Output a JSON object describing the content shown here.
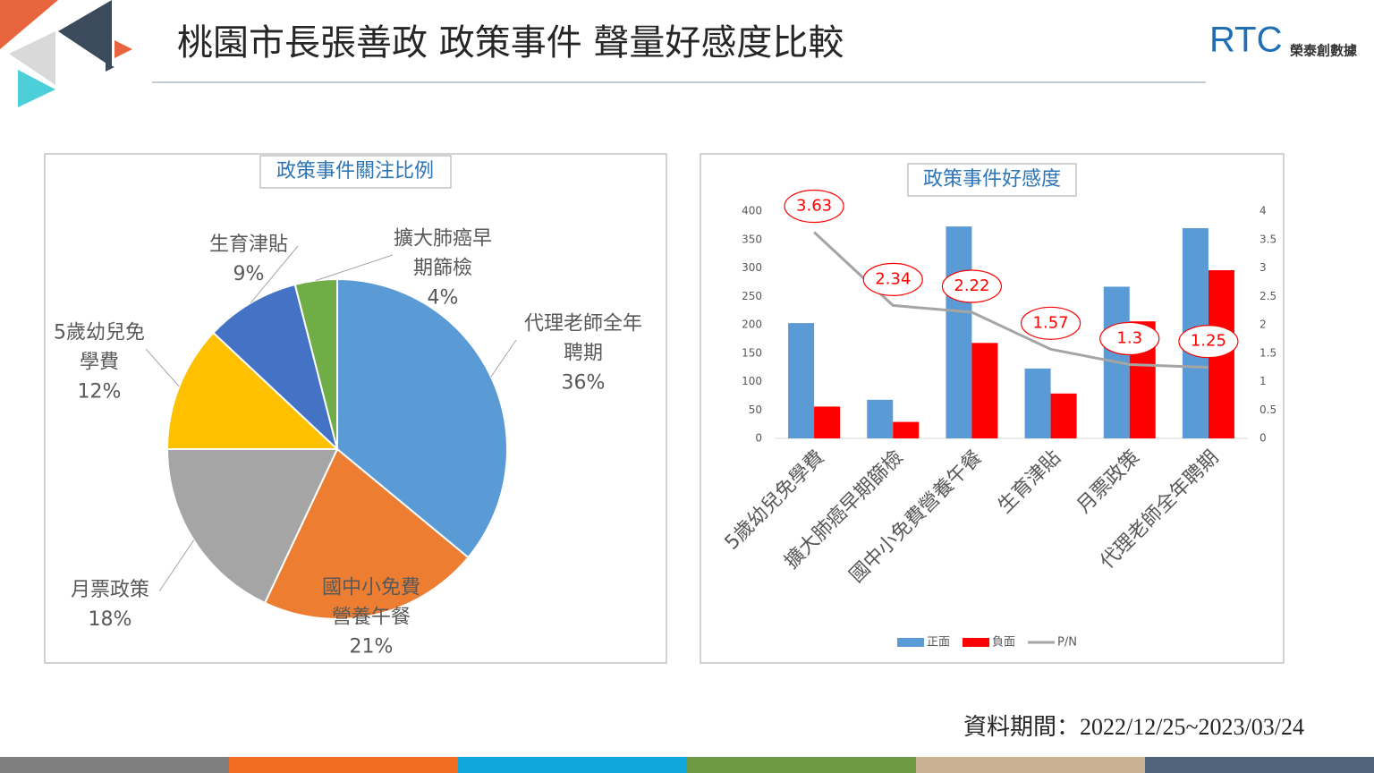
{
  "header": {
    "title": "桃園市長張善政 政策事件 聲量好感度比較",
    "logo_mark": "RTC",
    "logo_text": "榮泰創數據"
  },
  "footer": {
    "period": "資料期間：2022/12/25~2023/03/24"
  },
  "chart_data": [
    {
      "type": "pie",
      "title": "政策事件關注比例",
      "categories": [
        "代理老師全年聘期",
        "國中小免費營養午餐",
        "月票政策",
        "5歲幼兒免學費",
        "生育津貼",
        "擴大肺癌早期篩檢"
      ],
      "values": [
        36,
        21,
        18,
        12,
        9,
        4
      ],
      "value_labels": [
        "36%",
        "21%",
        "18%",
        "12%",
        "9%",
        "4%"
      ],
      "colors": [
        "#5b9bd5",
        "#ed7d31",
        "#a5a5a5",
        "#ffc000",
        "#4472c4",
        "#70ad47"
      ]
    },
    {
      "type": "bar",
      "title": "政策事件好感度",
      "categories": [
        "5歲幼兒免學費",
        "擴大肺癌早期篩檢",
        "國中小免費營養午餐",
        "生育津貼",
        "月票政策",
        "代理老師全年聘期"
      ],
      "series": [
        {
          "name": "正面",
          "color": "#5b9bd5",
          "values": [
            203,
            68,
            373,
            123,
            267,
            370
          ]
        },
        {
          "name": "負面",
          "color": "#ff0000",
          "values": [
            56,
            29,
            168,
            79,
            206,
            296
          ]
        },
        {
          "name": "P/N",
          "color": "#a5a5a5",
          "type": "line",
          "axis": "y2",
          "values": [
            3.63,
            2.34,
            2.22,
            1.57,
            1.3,
            1.25
          ]
        }
      ],
      "ylim": [
        0,
        400
      ],
      "yticks": [
        0,
        50,
        100,
        150,
        200,
        250,
        300,
        350,
        400
      ],
      "y2lim": [
        0,
        4
      ],
      "y2ticks": [
        0,
        0.5,
        1,
        1.5,
        2,
        2.5,
        3,
        3.5,
        4
      ],
      "legend": "bottom"
    }
  ]
}
